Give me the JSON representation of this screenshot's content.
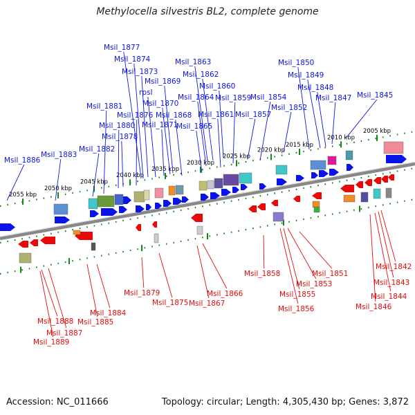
{
  "title": "Methylocella silvestris BL2, complete genome",
  "footer": {
    "accession": "Accession: NC_011666",
    "topology": "Topology: circular; Length: 4,305,430 bp; Genes: 3,872"
  },
  "colors": {
    "forward": "#0a14e6",
    "reverse": "#e60a0a",
    "track_tick": "#118811",
    "backbone": "#888888"
  },
  "scale_ticks": [
    "2055 kbp",
    "2050 kbp",
    "2045 kbp",
    "2040 kbp",
    "2035 kbp",
    "2030 kbp",
    "2025 kbp",
    "2020 kbp",
    "2015 kbp",
    "2010 kbp",
    "2005 kbp"
  ],
  "forward_labels": [
    "Msil_1886",
    "Msil_1883",
    "Msil_1882",
    "Msil_1881",
    "Msil_1880",
    "Msil_1878",
    "Msil_1877",
    "Msil_1876",
    "Msil_1874",
    "Msil_1873",
    "rpsI",
    "Msil_1871",
    "Msil_1870",
    "Msil_1869",
    "Msil_1868",
    "Msil_1865",
    "Msil_1864",
    "Msil_1863",
    "Msil_1862",
    "Msil_1861",
    "Msil_1860",
    "Msil_1859",
    "Msil_1857",
    "Msil_1854",
    "Msil_1852",
    "Msil_1850",
    "Msil_1849",
    "Msil_1848",
    "Msil_1847",
    "Msil_1845"
  ],
  "reverse_labels": [
    "Msil_1888",
    "Msil_1887",
    "Msil_1889",
    "Msil_1885",
    "Msil_1884",
    "Msil_1879",
    "Msil_1875",
    "Msil_1867",
    "Msil_1866",
    "Msil_1858",
    "Msil_1856",
    "Msil_1855",
    "Msil_1853",
    "Msil_1851",
    "Msil_1846",
    "Msil_1844",
    "Msil_1843",
    "Msil_1842"
  ]
}
